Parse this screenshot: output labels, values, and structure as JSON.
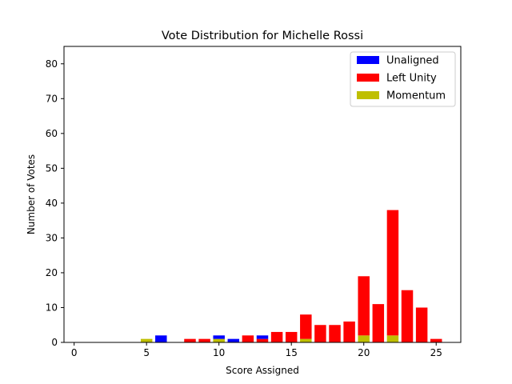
{
  "chart_data": {
    "type": "bar",
    "stacked": true,
    "title": "Vote Distribution for Michelle Rossi",
    "xlabel": "Score Assigned",
    "ylabel": "Number of Votes",
    "xlim": [
      -0.7,
      26.7
    ],
    "ylim": [
      0,
      85
    ],
    "xticks": [
      0,
      5,
      10,
      15,
      20,
      25
    ],
    "yticks": [
      0,
      10,
      20,
      30,
      40,
      50,
      60,
      70,
      80
    ],
    "legend_position": "top-right",
    "series": [
      {
        "name": "Momentum",
        "color": "#bfbf00",
        "points": [
          [
            5,
            1
          ],
          [
            10,
            1
          ],
          [
            16,
            1
          ],
          [
            20,
            2
          ],
          [
            22,
            2
          ]
        ]
      },
      {
        "name": "Left Unity",
        "color": "#ff0000",
        "points": [
          [
            8,
            1
          ],
          [
            9,
            1
          ],
          [
            12,
            2
          ],
          [
            13,
            1
          ],
          [
            14,
            3
          ],
          [
            15,
            3
          ],
          [
            16,
            7
          ],
          [
            17,
            5
          ],
          [
            18,
            5
          ],
          [
            19,
            6
          ],
          [
            20,
            17
          ],
          [
            21,
            11
          ],
          [
            22,
            36
          ],
          [
            23,
            15
          ],
          [
            24,
            10
          ],
          [
            25,
            1
          ]
        ]
      },
      {
        "name": "Unaligned",
        "color": "#0000ff",
        "points": [
          [
            6,
            2
          ],
          [
            10,
            1
          ],
          [
            11,
            1
          ],
          [
            13,
            1
          ]
        ]
      }
    ],
    "legend_order": [
      "Unaligned",
      "Left Unity",
      "Momentum"
    ]
  }
}
